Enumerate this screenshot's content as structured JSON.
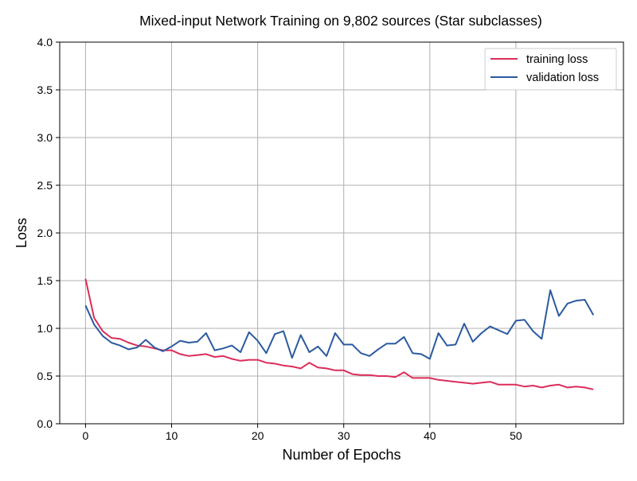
{
  "chart_data": {
    "type": "line",
    "title": "Mixed-input Network Training on 9,802 sources (Star subclasses)",
    "xlabel": "Number of Epochs",
    "ylabel": "Loss",
    "xlim": [
      -3,
      62.5
    ],
    "ylim": [
      0,
      4
    ],
    "xticks": [
      0,
      10,
      20,
      30,
      40,
      50
    ],
    "yticks": [
      0.0,
      0.5,
      1.0,
      1.5,
      2.0,
      2.5,
      3.0,
      3.5,
      4.0
    ],
    "grid": true,
    "legend_position": "top-right",
    "x": [
      0,
      1,
      2,
      3,
      4,
      5,
      6,
      7,
      8,
      9,
      10,
      11,
      12,
      13,
      14,
      15,
      16,
      17,
      18,
      19,
      20,
      21,
      22,
      23,
      24,
      25,
      26,
      27,
      28,
      29,
      30,
      31,
      32,
      33,
      34,
      35,
      36,
      37,
      38,
      39,
      40,
      41,
      42,
      43,
      44,
      45,
      46,
      47,
      48,
      49,
      50,
      51,
      52,
      53,
      54,
      55,
      56,
      57,
      58,
      59
    ],
    "series": [
      {
        "name": "training loss",
        "color": "#dc2d5a",
        "values": [
          1.52,
          1.11,
          0.97,
          0.9,
          0.89,
          0.85,
          0.82,
          0.81,
          0.79,
          0.77,
          0.77,
          0.73,
          0.71,
          0.72,
          0.73,
          0.7,
          0.71,
          0.68,
          0.66,
          0.67,
          0.67,
          0.64,
          0.63,
          0.61,
          0.6,
          0.58,
          0.64,
          0.59,
          0.58,
          0.56,
          0.56,
          0.52,
          0.51,
          0.51,
          0.5,
          0.5,
          0.49,
          0.54,
          0.48,
          0.48,
          0.48,
          0.46,
          0.45,
          0.44,
          0.43,
          0.42,
          0.43,
          0.44,
          0.41,
          0.41,
          0.41,
          0.39,
          0.4,
          0.38,
          0.4,
          0.41,
          0.38,
          0.39,
          0.38,
          0.36
        ]
      },
      {
        "name": "validation loss",
        "color": "#2c5aa0",
        "values": [
          1.24,
          1.04,
          0.92,
          0.85,
          0.82,
          0.78,
          0.8,
          0.88,
          0.8,
          0.76,
          0.81,
          0.87,
          0.85,
          0.86,
          0.95,
          0.77,
          0.79,
          0.82,
          0.75,
          0.96,
          0.87,
          0.74,
          0.94,
          0.97,
          0.69,
          0.93,
          0.75,
          0.81,
          0.71,
          0.95,
          0.83,
          0.83,
          0.74,
          0.71,
          0.78,
          0.84,
          0.84,
          0.91,
          0.74,
          0.73,
          0.68,
          0.95,
          0.82,
          0.83,
          1.05,
          0.86,
          0.95,
          1.02,
          0.98,
          0.94,
          1.08,
          1.09,
          0.97,
          0.89,
          1.4,
          1.13,
          1.26,
          1.29,
          1.3,
          1.14
        ]
      }
    ]
  }
}
